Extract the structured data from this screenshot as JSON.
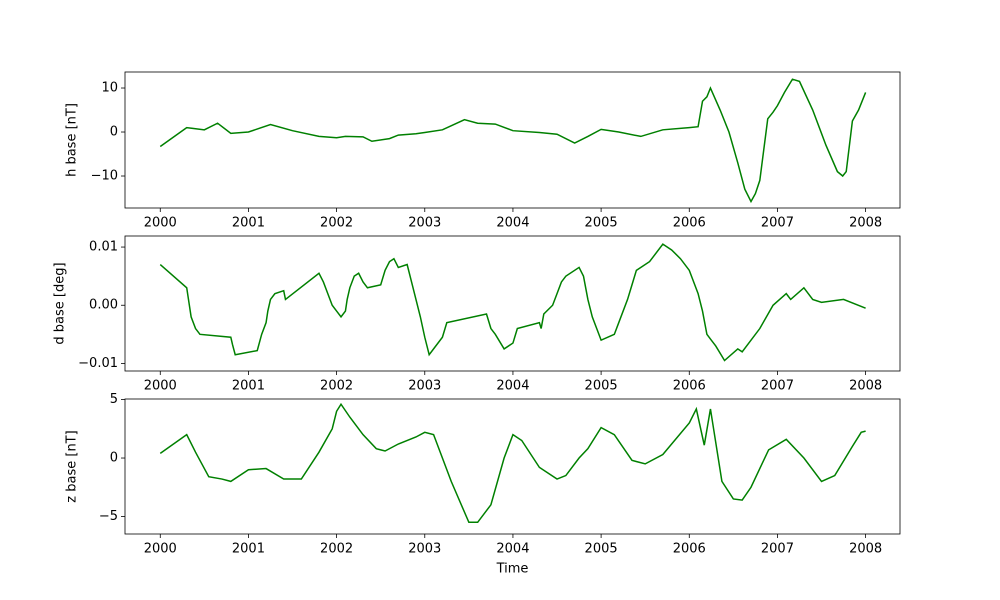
{
  "chart_data": [
    {
      "type": "line",
      "ylabel": "h base [nT]",
      "color": "#008000",
      "xlim": [
        1999.6,
        2008.39
      ],
      "xticks": [
        2000,
        2001,
        2002,
        2003,
        2004,
        2005,
        2006,
        2007,
        2008
      ],
      "ylim": [
        -17.27,
        13.64
      ],
      "yticks": [
        {
          "value": -10,
          "label": "−10"
        },
        0,
        10
      ],
      "x": [
        2000,
        2000.3,
        2000.5,
        2000.65,
        2000.8,
        2001.0,
        2001.25,
        2001.5,
        2001.8,
        2002.0,
        2002.1,
        2002.3,
        2002.4,
        2002.6,
        2002.7,
        2002.9,
        2003.0,
        2003.2,
        2003.45,
        2003.6,
        2003.8,
        2004.0,
        2004.3,
        2004.5,
        2004.7,
        2004.85,
        2005.0,
        2005.2,
        2005.45,
        2005.7,
        2006.0,
        2006.1,
        2006.15,
        2006.2,
        2006.24,
        2006.35,
        2006.45,
        2006.55,
        2006.63,
        2006.7,
        2006.75,
        2006.8,
        2006.89,
        2006.95,
        2007.0,
        2007.08,
        2007.17,
        2007.25,
        2007.4,
        2007.55,
        2007.68,
        2007.74,
        2007.78,
        2007.85,
        2007.92,
        2008.0
      ],
      "values": [
        -3.3,
        1,
        0.5,
        2,
        -0.3,
        0,
        1.7,
        0.3,
        -1,
        -1.3,
        -1,
        -1.1,
        -2.1,
        -1.5,
        -0.7,
        -0.4,
        -0.1,
        0.5,
        2.8,
        2,
        1.8,
        0.3,
        -0.1,
        -0.5,
        -2.5,
        -1,
        0.6,
        0,
        -1,
        0.5,
        1,
        1.2,
        7,
        8,
        10,
        5,
        0,
        -7,
        -13,
        -15.8,
        -14,
        -11,
        3,
        4.5,
        6,
        9,
        12,
        11.5,
        5,
        -3,
        -9,
        -10,
        -9,
        2.5,
        5,
        9
      ]
    },
    {
      "type": "line",
      "ylabel": "d base [deg]",
      "color": "#008000",
      "xlim": [
        1999.6,
        2008.39
      ],
      "xticks": [
        2000,
        2001,
        2002,
        2003,
        2004,
        2005,
        2006,
        2007,
        2008
      ],
      "ylim": [
        -0.0113,
        0.0119
      ],
      "yticks": [
        {
          "value": -0.01,
          "label": "−0.01"
        },
        {
          "value": 0,
          "label": "0.00"
        },
        {
          "value": 0.01,
          "label": "0.01"
        }
      ],
      "x": [
        2000,
        2000.3,
        2000.32,
        2000.35,
        2000.4,
        2000.45,
        2000.8,
        2000.82,
        2000.85,
        2001.1,
        2001.15,
        2001.2,
        2001.22,
        2001.25,
        2001.3,
        2001.4,
        2001.42,
        2001.8,
        2001.85,
        2001.9,
        2001.95,
        2002.0,
        2002.05,
        2002.1,
        2002.12,
        2002.15,
        2002.2,
        2002.25,
        2002.3,
        2002.35,
        2002.5,
        2002.55,
        2002.6,
        2002.65,
        2002.7,
        2002.8,
        2002.85,
        2002.9,
        2002.95,
        2003.0,
        2003.05,
        2003.1,
        2003.2,
        2003.25,
        2003.7,
        2003.75,
        2003.8,
        2003.9,
        2004.0,
        2004.05,
        2004.3,
        2004.32,
        2004.35,
        2004.45,
        2004.5,
        2004.55,
        2004.6,
        2004.75,
        2004.8,
        2004.85,
        2004.9,
        2004.95,
        2005.0,
        2005.15,
        2005.2,
        2005.3,
        2005.35,
        2005.4,
        2005.55,
        2005.7,
        2005.8,
        2005.9,
        2006.0,
        2006.05,
        2006.1,
        2006.15,
        2006.2,
        2006.25,
        2006.3,
        2006.4,
        2006.55,
        2006.6,
        2006.8,
        2006.95,
        2007.1,
        2007.15,
        2007.3,
        2007.4,
        2007.5,
        2007.75,
        2008.0
      ],
      "values": [
        0.007,
        0.003,
        0.001,
        -0.002,
        -0.004,
        -0.005,
        -0.0055,
        -0.0068,
        -0.0085,
        -0.0078,
        -0.005,
        -0.003,
        -0.001,
        0.001,
        0.002,
        0.0025,
        0.001,
        0.0055,
        0.004,
        0.002,
        0,
        -0.001,
        -0.002,
        -0.001,
        0.001,
        0.003,
        0.005,
        0.0055,
        0.004,
        0.003,
        0.0035,
        0.006,
        0.0075,
        0.008,
        0.0065,
        0.007,
        0.004,
        0.001,
        -0.002,
        -0.0055,
        -0.0085,
        -0.0075,
        -0.0055,
        -0.003,
        -0.0015,
        -0.004,
        -0.005,
        -0.0075,
        -0.0065,
        -0.004,
        -0.003,
        -0.004,
        -0.0015,
        0,
        0.002,
        0.004,
        0.005,
        0.0065,
        0.005,
        0.001,
        -0.002,
        -0.004,
        -0.006,
        -0.005,
        -0.003,
        0.001,
        0.0035,
        0.006,
        0.0075,
        0.0105,
        0.0095,
        0.008,
        0.006,
        0.004,
        0.002,
        -0.001,
        -0.005,
        -0.006,
        -0.007,
        -0.0095,
        -0.0075,
        -0.008,
        -0.004,
        0,
        0.002,
        0.001,
        0.003,
        0.001,
        0.0005,
        0.001,
        -0.0005
      ]
    },
    {
      "type": "line",
      "ylabel": "z base [nT]",
      "xlabel": "Time",
      "color": "#008000",
      "xlim": [
        1999.6,
        2008.39
      ],
      "xticks": [
        2000,
        2001,
        2002,
        2003,
        2004,
        2005,
        2006,
        2007,
        2008
      ],
      "ylim": [
        -6.5,
        5.05
      ],
      "yticks": [
        {
          "value": -5,
          "label": "−5"
        },
        0,
        5
      ],
      "x": [
        2000,
        2000.3,
        2000.4,
        2000.55,
        2000.7,
        2000.8,
        2001.0,
        2001.2,
        2001.4,
        2001.6,
        2001.8,
        2001.95,
        2002.0,
        2002.05,
        2002.15,
        2002.3,
        2002.45,
        2002.55,
        2002.7,
        2002.9,
        2003.0,
        2003.1,
        2003.3,
        2003.5,
        2003.6,
        2003.75,
        2003.9,
        2004.0,
        2004.1,
        2004.3,
        2004.5,
        2004.6,
        2004.75,
        2004.85,
        2005.0,
        2005.15,
        2005.35,
        2005.5,
        2005.7,
        2006.0,
        2006.08,
        2006.17,
        2006.24,
        2006.37,
        2006.5,
        2006.6,
        2006.7,
        2006.9,
        2007.1,
        2007.3,
        2007.5,
        2007.65,
        2007.85,
        2007.95,
        2008.0
      ],
      "values": [
        0.4,
        2,
        0.5,
        -1.6,
        -1.8,
        -2,
        -1,
        -0.9,
        -1.8,
        -1.8,
        0.5,
        2.5,
        4,
        4.6,
        3.5,
        2,
        0.8,
        0.6,
        1.2,
        1.8,
        2.2,
        2,
        -2,
        -5.5,
        -5.5,
        -4,
        0,
        2,
        1.5,
        -0.8,
        -1.8,
        -1.5,
        0,
        0.8,
        2.6,
        2,
        -0.2,
        -0.5,
        0.3,
        3,
        4.2,
        1.1,
        4.2,
        -2,
        -3.5,
        -3.6,
        -2.5,
        0.7,
        1.6,
        0,
        -2,
        -1.5,
        1,
        2.2,
        2.3
      ]
    }
  ]
}
